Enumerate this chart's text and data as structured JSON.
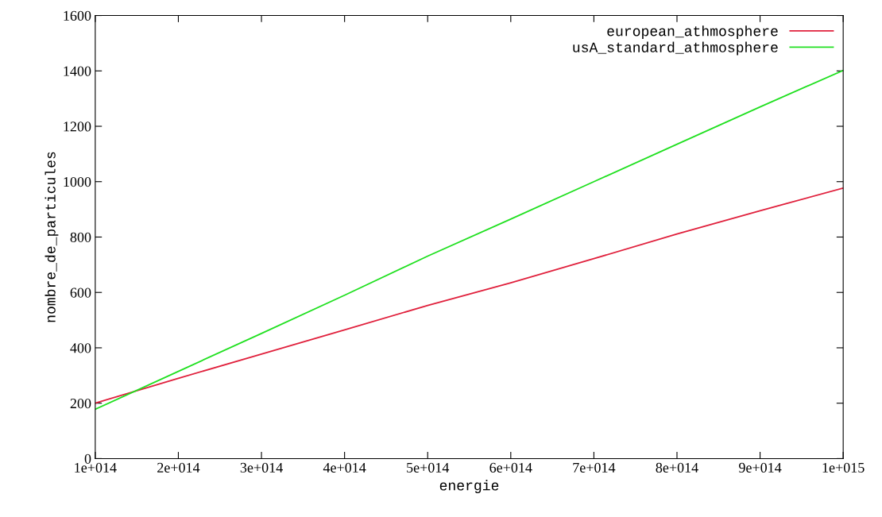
{
  "chart_data": {
    "type": "line",
    "xlabel": "energie",
    "ylabel": "nombre_de_particules",
    "x": [
      100000000000000.0,
      200000000000000.0,
      300000000000000.0,
      400000000000000.0,
      500000000000000.0,
      600000000000000.0,
      700000000000000.0,
      800000000000000.0,
      900000000000000.0,
      1000000000000000.0
    ],
    "series": [
      {
        "name": "european_athmosphere",
        "color": "#e0203c",
        "values": [
          200,
          290,
          377,
          465,
          553,
          635,
          722,
          811,
          895,
          977
        ]
      },
      {
        "name": "usA_standard_athmosphere",
        "color": "#20e020",
        "values": [
          178,
          315,
          452,
          590,
          731,
          865,
          1000,
          1135,
          1270,
          1402
        ]
      }
    ],
    "xlim": [
      100000000000000.0,
      1000000000000000.0
    ],
    "xticks": [
      {
        "value": 100000000000000.0,
        "label": "1e+014"
      },
      {
        "value": 200000000000000.0,
        "label": "2e+014"
      },
      {
        "value": 300000000000000.0,
        "label": "3e+014"
      },
      {
        "value": 400000000000000.0,
        "label": "4e+014"
      },
      {
        "value": 500000000000000.0,
        "label": "5e+014"
      },
      {
        "value": 600000000000000.0,
        "label": "6e+014"
      },
      {
        "value": 700000000000000.0,
        "label": "7e+014"
      },
      {
        "value": 800000000000000.0,
        "label": "8e+014"
      },
      {
        "value": 900000000000000.0,
        "label": "9e+014"
      },
      {
        "value": 1000000000000000.0,
        "label": "1e+015"
      }
    ],
    "ylim": [
      0,
      1600
    ],
    "yticks": [
      0,
      200,
      400,
      600,
      800,
      1000,
      1200,
      1400,
      1600
    ],
    "grid": false,
    "legend": "top right",
    "marker": "none",
    "line_style": "solid"
  }
}
